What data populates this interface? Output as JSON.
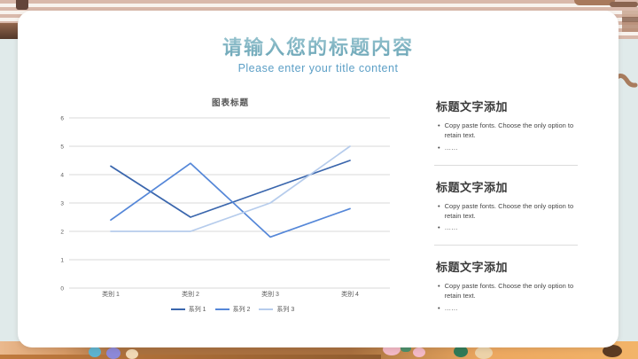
{
  "slide": {
    "title": "请输入您的标题内容",
    "subtitle": "Please enter your title content"
  },
  "theme": {
    "title-grad-top": "#9FC9D4",
    "title-grad-bottom": "#66A2B4",
    "subtitle-color": "#5C9FC6"
  },
  "chart_data": {
    "type": "line",
    "title": "图表标题",
    "categories": [
      "类别 1",
      "类别 2",
      "类别 3",
      "类别 4"
    ],
    "series": [
      {
        "name": "系列 1",
        "values": [
          4.3,
          2.5,
          3.5,
          4.5
        ],
        "color": "#3A66AD"
      },
      {
        "name": "系列 2",
        "values": [
          2.4,
          4.4,
          1.8,
          2.8
        ],
        "color": "#5587D8"
      },
      {
        "name": "系列 3",
        "values": [
          2.0,
          2.0,
          3.0,
          5.0
        ],
        "color": "#B6CCEC"
      }
    ],
    "y_ticks": [
      0,
      1,
      2,
      3,
      4,
      5,
      6
    ],
    "ylim": [
      0,
      6
    ],
    "grid": true,
    "legend_position": "bottom",
    "axis_color": "#595959",
    "gridline_color": "#D9D9D9"
  },
  "sections": [
    {
      "heading": "标题文字添加",
      "bullets": [
        "Copy paste fonts. Choose the only option to retain text.",
        "……"
      ]
    },
    {
      "heading": "标题文字添加",
      "bullets": [
        "Copy paste fonts. Choose the only option to retain text.",
        "……"
      ]
    },
    {
      "heading": "标题文字添加",
      "bullets": [
        "Copy paste fonts. Choose the only option to retain text.",
        "……"
      ]
    }
  ]
}
